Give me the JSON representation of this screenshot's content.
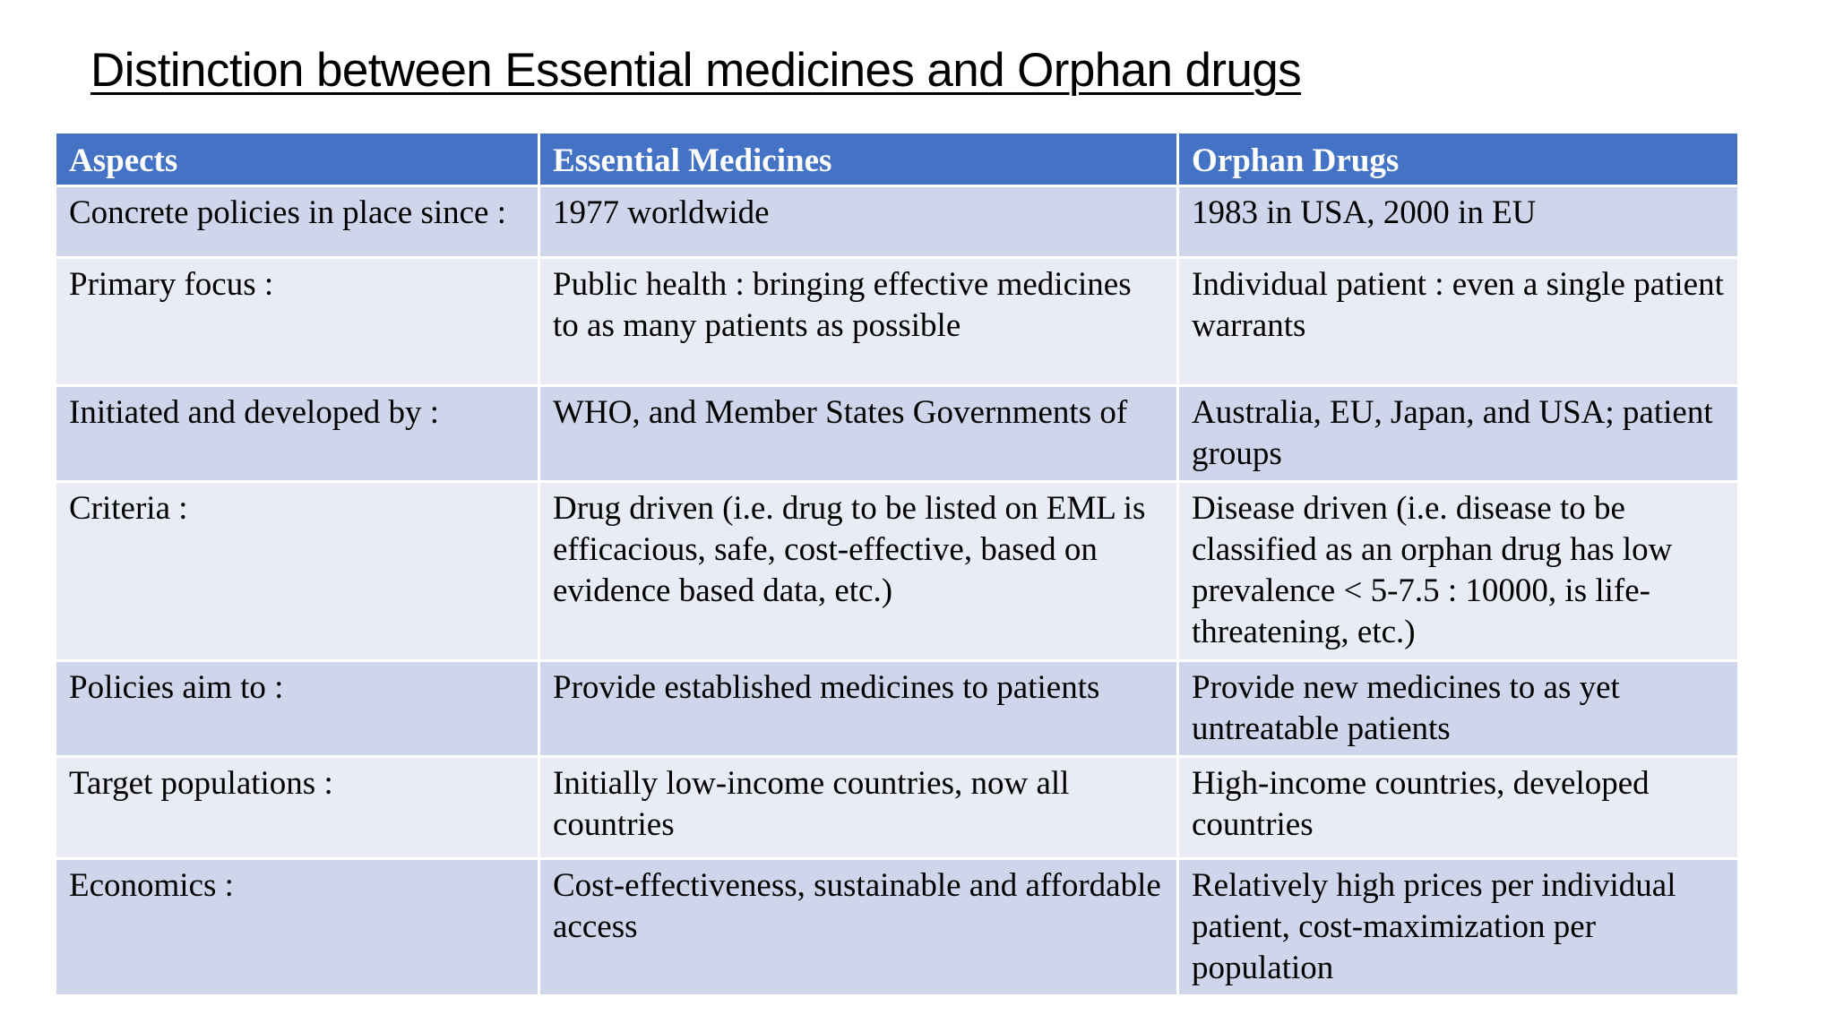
{
  "title": "Distinction between Essential medicines and Orphan drugs",
  "table": {
    "headers": [
      "Aspects",
      "Essential Medicines",
      "Orphan Drugs"
    ],
    "rows": [
      [
        "Concrete policies in place since :",
        "1977 worldwide",
        "1983 in USA, 2000 in EU"
      ],
      [
        "Primary focus :",
        "Public health : bringing effective medicines to as many patients as possible",
        "Individual patient : even a single patient warrants"
      ],
      [
        "Initiated and developed by :",
        "WHO, and Member States Governments of",
        "Australia, EU, Japan, and USA; patient groups"
      ],
      [
        "Criteria :",
        "Drug driven (i.e. drug to be listed on EML is efficacious, safe, cost-effective, based on evidence based data, etc.)",
        "Disease driven (i.e. disease to be classified as an orphan drug has low prevalence < 5-7.5 : 10000, is life-threatening, etc.)"
      ],
      [
        "Policies aim to :",
        "Provide established medicines to patients",
        "Provide new medicines to as yet untreatable patients"
      ],
      [
        "Target populations :",
        "Initially low-income countries, now all countries",
        "High-income countries, developed countries"
      ],
      [
        "Economics :",
        "Cost-effectiveness, sustainable and affordable access",
        "Relatively high prices per individual patient, cost-maximization per population"
      ]
    ]
  },
  "colors": {
    "header_bg": "#4472c4",
    "row_dark": "#cfd5ea",
    "row_light": "#e9ebf5"
  }
}
